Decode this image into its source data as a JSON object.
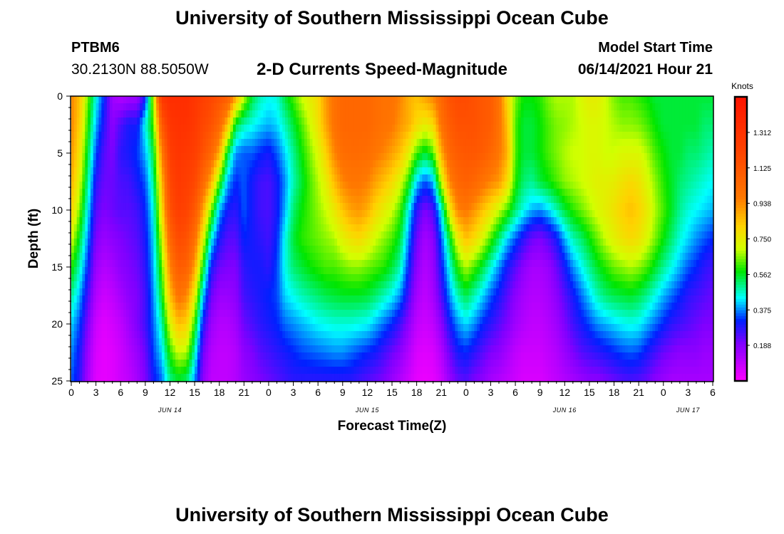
{
  "header": {
    "title": "University of Southern Mississippi Ocean Cube",
    "station_id": "PTBM6",
    "coords": "30.2130N  88.5050W",
    "plot_title": "2-D Currents Speed-Magnitude",
    "model_start_label": "Model Start Time",
    "model_start_time": "06/14/2021 Hour 21"
  },
  "footer": {
    "title": "University of Southern Mississippi Ocean Cube"
  },
  "chart_data": {
    "type": "heatmap",
    "title": "2-D Currents Speed-Magnitude",
    "xlabel": "Forecast Time(Z)",
    "ylabel": "Depth (ft)",
    "x_unit": "hours since 06/14/2021 00Z",
    "xlim": [
      0,
      78
    ],
    "ylim": [
      0,
      25
    ],
    "x_ticks": [
      0,
      3,
      6,
      9,
      12,
      15,
      18,
      21,
      24,
      27,
      30,
      33,
      36,
      39,
      42,
      45,
      48,
      51,
      54,
      57,
      60,
      63,
      66,
      69,
      72,
      75,
      78
    ],
    "x_tick_labels": [
      "0",
      "3",
      "6",
      "9",
      "12",
      "15",
      "18",
      "21",
      "0",
      "3",
      "6",
      "9",
      "12",
      "15",
      "18",
      "21",
      "0",
      "3",
      "6",
      "9",
      "12",
      "15",
      "18",
      "21",
      "0",
      "3",
      "6"
    ],
    "y_ticks": [
      0,
      5,
      10,
      15,
      20,
      25
    ],
    "y_tick_labels": [
      "0",
      "5",
      "10",
      "15",
      "20",
      "25"
    ],
    "day_labels": [
      {
        "x": 12,
        "text": "JUN 14"
      },
      {
        "x": 36,
        "text": "JUN 15"
      },
      {
        "x": 60,
        "text": "JUN 16"
      },
      {
        "x": 75,
        "text": "JUN 17"
      }
    ],
    "colorbar": {
      "unit": "Knots",
      "range": [
        0,
        1.5
      ],
      "tick_values": [
        1.312,
        1.125,
        0.938,
        0.75,
        0.562,
        0.375,
        0.188
      ],
      "tick_labels": [
        "1.312",
        "1.125",
        "0.938",
        "0.750",
        "0.562",
        "0.375",
        "0.188"
      ]
    },
    "depths": [
      0,
      2.5,
      5,
      7.5,
      10,
      12.5,
      15,
      17.5,
      20,
      22.5,
      25
    ],
    "times": [
      0,
      1,
      2,
      3,
      4,
      5,
      6,
      7,
      8,
      9,
      10,
      11,
      12,
      13,
      14,
      15,
      16,
      17,
      18,
      19,
      20,
      21,
      22,
      23,
      24,
      25,
      26,
      27,
      28,
      29,
      30,
      31,
      32,
      33,
      34,
      35,
      36,
      37,
      38,
      39,
      40,
      41,
      42,
      43,
      44,
      45,
      46,
      47,
      48,
      49,
      50,
      51,
      52,
      53,
      54,
      55,
      56,
      57,
      58,
      59,
      60,
      61,
      62,
      63,
      64,
      65,
      66,
      67,
      68,
      69,
      70,
      71,
      72,
      73,
      74,
      75,
      76,
      77,
      78
    ],
    "profiles": {
      "columns": [
        "time",
        "d0",
        "d2.5",
        "d5",
        "d7.5",
        "d10",
        "d12.5",
        "d15",
        "d17.5",
        "d20",
        "d22.5",
        "d25"
      ],
      "rows": [
        [
          0,
          0.95,
          0.95,
          0.92,
          0.88,
          0.82,
          0.72,
          0.6,
          0.5,
          0.42,
          0.38,
          0.35
        ],
        [
          1,
          0.85,
          0.82,
          0.78,
          0.72,
          0.65,
          0.56,
          0.48,
          0.4,
          0.34,
          0.3,
          0.28
        ],
        [
          2,
          0.65,
          0.6,
          0.55,
          0.5,
          0.44,
          0.38,
          0.32,
          0.26,
          0.2,
          0.16,
          0.14
        ],
        [
          3,
          0.45,
          0.4,
          0.34,
          0.28,
          0.24,
          0.2,
          0.16,
          0.12,
          0.08,
          0.06,
          0.05
        ],
        [
          4,
          0.32,
          0.28,
          0.24,
          0.22,
          0.2,
          0.16,
          0.12,
          0.08,
          0.05,
          0.04,
          0.04
        ],
        [
          5,
          0.15,
          0.18,
          0.2,
          0.22,
          0.22,
          0.18,
          0.14,
          0.1,
          0.07,
          0.05,
          0.05
        ],
        [
          6,
          0.12,
          0.25,
          0.28,
          0.25,
          0.24,
          0.2,
          0.18,
          0.14,
          0.1,
          0.08,
          0.08
        ],
        [
          7,
          0.14,
          0.3,
          0.3,
          0.26,
          0.24,
          0.22,
          0.2,
          0.18,
          0.15,
          0.12,
          0.1
        ],
        [
          8,
          0.15,
          0.3,
          0.33,
          0.3,
          0.26,
          0.24,
          0.22,
          0.2,
          0.2,
          0.16,
          0.14
        ],
        [
          9,
          0.3,
          0.45,
          0.4,
          0.35,
          0.32,
          0.3,
          0.28,
          0.26,
          0.26,
          0.22,
          0.2
        ],
        [
          10,
          0.7,
          0.62,
          0.55,
          0.5,
          0.45,
          0.42,
          0.4,
          0.38,
          0.36,
          0.34,
          0.3
        ],
        [
          11,
          1.3,
          1.1,
          0.95,
          0.85,
          0.78,
          0.7,
          0.62,
          0.56,
          0.48,
          0.42,
          0.36
        ],
        [
          12,
          1.35,
          1.3,
          1.25,
          1.2,
          1.15,
          1.05,
          0.95,
          0.85,
          0.72,
          0.6,
          0.5
        ],
        [
          13,
          1.35,
          1.32,
          1.3,
          1.28,
          1.25,
          1.18,
          1.1,
          1.0,
          0.85,
          0.7,
          0.55
        ],
        [
          14,
          1.35,
          1.32,
          1.28,
          1.25,
          1.22,
          1.15,
          1.08,
          0.95,
          0.82,
          0.68,
          0.52
        ],
        [
          15,
          1.3,
          1.28,
          1.25,
          1.2,
          1.12,
          1.02,
          0.9,
          0.75,
          0.6,
          0.48,
          0.38
        ],
        [
          16,
          1.25,
          1.2,
          1.15,
          1.05,
          0.9,
          0.75,
          0.58,
          0.42,
          0.3,
          0.22,
          0.18
        ],
        [
          17,
          1.2,
          1.15,
          1.05,
          0.88,
          0.65,
          0.45,
          0.3,
          0.22,
          0.16,
          0.12,
          0.1
        ],
        [
          18,
          1.15,
          1.05,
          0.88,
          0.62,
          0.4,
          0.3,
          0.22,
          0.16,
          0.12,
          0.1,
          0.1
        ],
        [
          19,
          1.1,
          0.85,
          0.55,
          0.4,
          0.3,
          0.24,
          0.2,
          0.16,
          0.12,
          0.1,
          0.1
        ],
        [
          20,
          0.9,
          0.55,
          0.38,
          0.32,
          0.28,
          0.24,
          0.2,
          0.18,
          0.15,
          0.12,
          0.12
        ],
        [
          21,
          0.7,
          0.48,
          0.35,
          0.35,
          0.35,
          0.32,
          0.28,
          0.26,
          0.22,
          0.18,
          0.16
        ],
        [
          22,
          0.55,
          0.45,
          0.35,
          0.3,
          0.3,
          0.3,
          0.3,
          0.28,
          0.25,
          0.2,
          0.18
        ],
        [
          23,
          0.48,
          0.42,
          0.32,
          0.26,
          0.26,
          0.28,
          0.3,
          0.3,
          0.28,
          0.24,
          0.2
        ],
        [
          24,
          0.45,
          0.4,
          0.3,
          0.25,
          0.25,
          0.26,
          0.28,
          0.32,
          0.3,
          0.26,
          0.22
        ],
        [
          25,
          0.46,
          0.42,
          0.35,
          0.3,
          0.3,
          0.32,
          0.34,
          0.34,
          0.32,
          0.28,
          0.24
        ],
        [
          26,
          0.55,
          0.48,
          0.42,
          0.38,
          0.4,
          0.45,
          0.45,
          0.42,
          0.36,
          0.3,
          0.26
        ],
        [
          27,
          0.62,
          0.55,
          0.5,
          0.48,
          0.52,
          0.55,
          0.52,
          0.45,
          0.38,
          0.32,
          0.28
        ],
        [
          28,
          0.7,
          0.62,
          0.58,
          0.55,
          0.58,
          0.6,
          0.55,
          0.48,
          0.4,
          0.34,
          0.28
        ],
        [
          29,
          0.75,
          0.7,
          0.65,
          0.62,
          0.62,
          0.62,
          0.58,
          0.5,
          0.42,
          0.35,
          0.28
        ],
        [
          30,
          0.8,
          0.78,
          0.72,
          0.68,
          0.66,
          0.64,
          0.6,
          0.52,
          0.44,
          0.36,
          0.28
        ],
        [
          31,
          0.92,
          0.9,
          0.82,
          0.75,
          0.7,
          0.66,
          0.62,
          0.54,
          0.45,
          0.37,
          0.28
        ],
        [
          32,
          1.0,
          1.0,
          0.95,
          0.86,
          0.76,
          0.68,
          0.62,
          0.55,
          0.46,
          0.38,
          0.28
        ],
        [
          33,
          1.05,
          1.05,
          1.02,
          0.95,
          0.84,
          0.74,
          0.64,
          0.56,
          0.46,
          0.38,
          0.28
        ],
        [
          34,
          1.05,
          1.05,
          1.03,
          0.98,
          0.9,
          0.78,
          0.66,
          0.56,
          0.46,
          0.36,
          0.28
        ],
        [
          35,
          1.05,
          1.05,
          1.03,
          0.98,
          0.92,
          0.8,
          0.66,
          0.56,
          0.45,
          0.34,
          0.26
        ],
        [
          36,
          1.05,
          1.05,
          1.02,
          0.96,
          0.88,
          0.76,
          0.64,
          0.55,
          0.44,
          0.32,
          0.24
        ],
        [
          37,
          1.02,
          1.02,
          0.98,
          0.9,
          0.8,
          0.7,
          0.62,
          0.52,
          0.4,
          0.3,
          0.22
        ],
        [
          38,
          1.0,
          1.0,
          0.95,
          0.85,
          0.75,
          0.66,
          0.6,
          0.48,
          0.36,
          0.26,
          0.2
        ],
        [
          39,
          1.0,
          0.98,
          0.9,
          0.8,
          0.7,
          0.62,
          0.55,
          0.44,
          0.32,
          0.22,
          0.16
        ],
        [
          40,
          0.95,
          0.92,
          0.85,
          0.72,
          0.62,
          0.55,
          0.48,
          0.38,
          0.26,
          0.18,
          0.12
        ],
        [
          41,
          0.88,
          0.88,
          0.75,
          0.6,
          0.45,
          0.38,
          0.32,
          0.26,
          0.18,
          0.12,
          0.08
        ],
        [
          42,
          0.85,
          0.8,
          0.62,
          0.42,
          0.28,
          0.22,
          0.18,
          0.14,
          0.1,
          0.06,
          0.04
        ],
        [
          43,
          0.9,
          0.75,
          0.55,
          0.35,
          0.2,
          0.14,
          0.12,
          0.1,
          0.08,
          0.05,
          0.03
        ],
        [
          44,
          0.95,
          0.8,
          0.62,
          0.4,
          0.25,
          0.18,
          0.16,
          0.14,
          0.1,
          0.06,
          0.04
        ],
        [
          45,
          1.05,
          1.0,
          0.88,
          0.7,
          0.45,
          0.35,
          0.3,
          0.25,
          0.18,
          0.12,
          0.08
        ],
        [
          46,
          1.15,
          1.1,
          1.05,
          0.95,
          0.75,
          0.55,
          0.45,
          0.38,
          0.3,
          0.22,
          0.16
        ],
        [
          47,
          1.18,
          1.15,
          1.1,
          1.05,
          0.95,
          0.75,
          0.6,
          0.48,
          0.38,
          0.3,
          0.22
        ],
        [
          48,
          1.18,
          1.15,
          1.12,
          1.08,
          0.98,
          0.85,
          0.68,
          0.54,
          0.42,
          0.32,
          0.24
        ],
        [
          49,
          1.15,
          1.15,
          1.12,
          1.05,
          0.92,
          0.8,
          0.62,
          0.48,
          0.38,
          0.28,
          0.2
        ],
        [
          50,
          1.12,
          1.12,
          1.1,
          1.0,
          0.85,
          0.72,
          0.55,
          0.42,
          0.32,
          0.24,
          0.18
        ],
        [
          51,
          1.1,
          1.1,
          1.05,
          0.95,
          0.78,
          0.62,
          0.46,
          0.35,
          0.28,
          0.2,
          0.14
        ],
        [
          52,
          1.0,
          1.0,
          0.98,
          0.92,
          0.7,
          0.52,
          0.38,
          0.3,
          0.24,
          0.18,
          0.12
        ],
        [
          53,
          0.8,
          0.85,
          0.88,
          0.8,
          0.62,
          0.42,
          0.3,
          0.24,
          0.2,
          0.14,
          0.1
        ],
        [
          54,
          0.65,
          0.62,
          0.62,
          0.6,
          0.52,
          0.35,
          0.24,
          0.18,
          0.15,
          0.1,
          0.08
        ],
        [
          55,
          0.58,
          0.55,
          0.55,
          0.52,
          0.45,
          0.28,
          0.18,
          0.14,
          0.12,
          0.08,
          0.06
        ],
        [
          56,
          0.58,
          0.55,
          0.55,
          0.5,
          0.4,
          0.22,
          0.14,
          0.12,
          0.1,
          0.08,
          0.06
        ],
        [
          57,
          0.6,
          0.58,
          0.58,
          0.55,
          0.38,
          0.2,
          0.14,
          0.12,
          0.1,
          0.08,
          0.06
        ],
        [
          58,
          0.65,
          0.62,
          0.62,
          0.58,
          0.42,
          0.24,
          0.16,
          0.14,
          0.12,
          0.1,
          0.08
        ],
        [
          59,
          0.68,
          0.65,
          0.65,
          0.62,
          0.48,
          0.3,
          0.22,
          0.18,
          0.15,
          0.12,
          0.1
        ],
        [
          60,
          0.68,
          0.66,
          0.68,
          0.66,
          0.55,
          0.4,
          0.3,
          0.24,
          0.2,
          0.16,
          0.12
        ],
        [
          61,
          0.68,
          0.68,
          0.7,
          0.68,
          0.6,
          0.48,
          0.38,
          0.3,
          0.26,
          0.2,
          0.14
        ],
        [
          62,
          0.72,
          0.7,
          0.7,
          0.7,
          0.64,
          0.52,
          0.44,
          0.36,
          0.3,
          0.24,
          0.16
        ],
        [
          63,
          0.75,
          0.72,
          0.72,
          0.72,
          0.68,
          0.58,
          0.5,
          0.42,
          0.34,
          0.26,
          0.18
        ],
        [
          64,
          0.75,
          0.72,
          0.72,
          0.74,
          0.72,
          0.64,
          0.56,
          0.48,
          0.38,
          0.28,
          0.18
        ],
        [
          65,
          0.7,
          0.7,
          0.7,
          0.74,
          0.75,
          0.7,
          0.6,
          0.52,
          0.4,
          0.3,
          0.2
        ],
        [
          66,
          0.65,
          0.68,
          0.7,
          0.75,
          0.78,
          0.74,
          0.64,
          0.54,
          0.42,
          0.32,
          0.22
        ],
        [
          67,
          0.62,
          0.66,
          0.72,
          0.78,
          0.82,
          0.78,
          0.66,
          0.55,
          0.44,
          0.34,
          0.24
        ],
        [
          68,
          0.62,
          0.66,
          0.72,
          0.8,
          0.85,
          0.8,
          0.68,
          0.56,
          0.45,
          0.35,
          0.25
        ],
        [
          69,
          0.6,
          0.65,
          0.72,
          0.78,
          0.82,
          0.78,
          0.66,
          0.54,
          0.44,
          0.34,
          0.24
        ],
        [
          70,
          0.58,
          0.62,
          0.68,
          0.72,
          0.76,
          0.72,
          0.62,
          0.5,
          0.4,
          0.3,
          0.22
        ],
        [
          71,
          0.55,
          0.58,
          0.62,
          0.66,
          0.68,
          0.65,
          0.56,
          0.45,
          0.36,
          0.26,
          0.18
        ],
        [
          72,
          0.55,
          0.55,
          0.58,
          0.6,
          0.62,
          0.58,
          0.5,
          0.4,
          0.32,
          0.22,
          0.16
        ],
        [
          73,
          0.55,
          0.55,
          0.55,
          0.56,
          0.56,
          0.52,
          0.45,
          0.36,
          0.28,
          0.2,
          0.14
        ],
        [
          74,
          0.55,
          0.55,
          0.55,
          0.52,
          0.5,
          0.46,
          0.4,
          0.32,
          0.26,
          0.18,
          0.14
        ],
        [
          75,
          0.55,
          0.55,
          0.52,
          0.5,
          0.46,
          0.42,
          0.35,
          0.28,
          0.24,
          0.18,
          0.14
        ],
        [
          76,
          0.55,
          0.55,
          0.52,
          0.48,
          0.44,
          0.38,
          0.32,
          0.26,
          0.22,
          0.18,
          0.14
        ],
        [
          77,
          0.55,
          0.52,
          0.5,
          0.46,
          0.42,
          0.35,
          0.28,
          0.24,
          0.2,
          0.16,
          0.14
        ],
        [
          78,
          0.55,
          0.52,
          0.48,
          0.44,
          0.4,
          0.32,
          0.26,
          0.22,
          0.2,
          0.16,
          0.14
        ]
      ]
    }
  }
}
